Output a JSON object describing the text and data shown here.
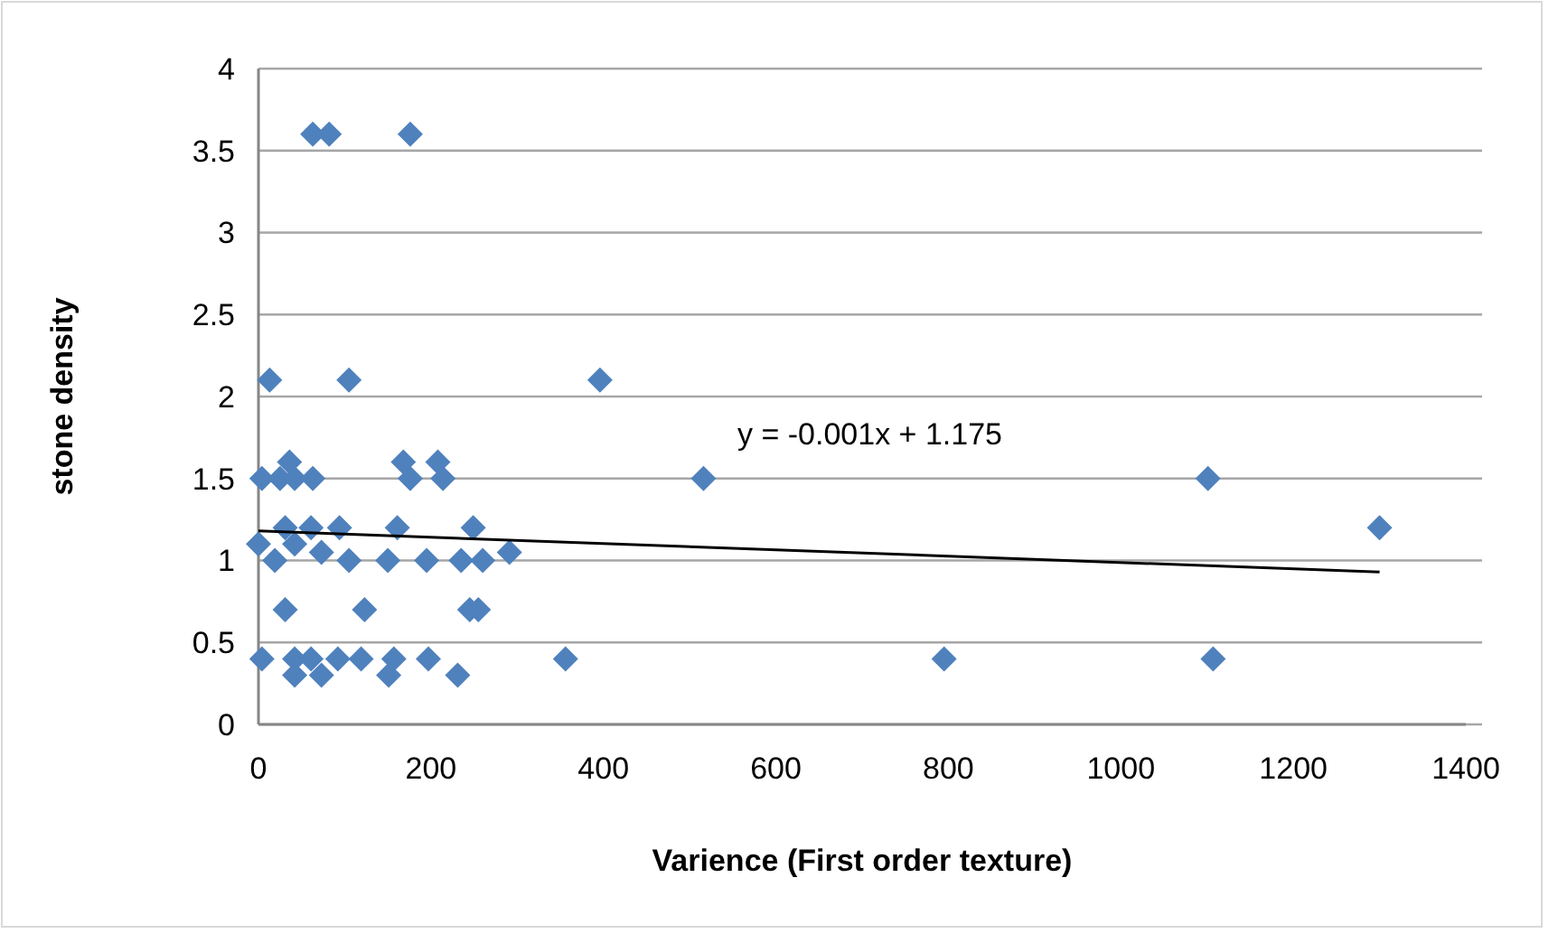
{
  "chart_data": {
    "type": "scatter",
    "xlabel": "Varience (First order texture)",
    "ylabel": "stone density",
    "xlim": [
      0,
      1400
    ],
    "xticks": [
      0,
      200,
      400,
      600,
      800,
      1000,
      1200,
      1400
    ],
    "ylim": [
      0,
      4
    ],
    "yticks": [
      0,
      0.5,
      1,
      1.5,
      2,
      2.5,
      3,
      3.5,
      4
    ],
    "grid": "y",
    "marker": "diamond",
    "annotations": [
      "y = -0.001x + 1.175"
    ],
    "series": [
      {
        "color": "#4f81bd",
        "x": [
          63,
          82,
          176,
          13,
          105,
          396,
          4,
          25,
          42,
          63,
          36,
          168,
          176,
          208,
          214,
          516,
          1101,
          1300,
          0,
          19,
          31,
          42,
          61,
          73,
          94,
          105,
          150,
          161,
          195,
          235,
          249,
          260,
          291,
          31,
          123,
          245,
          255,
          4,
          42,
          61,
          92,
          119,
          157,
          197,
          356,
          795,
          1107,
          42,
          73,
          151,
          231
        ],
        "values": [
          3.6,
          3.6,
          3.6,
          2.1,
          2.1,
          2.1,
          1.5,
          1.5,
          1.5,
          1.5,
          1.6,
          1.6,
          1.5,
          1.6,
          1.5,
          1.5,
          1.5,
          1.2,
          1.1,
          1.0,
          1.2,
          1.1,
          1.2,
          1.05,
          1.2,
          1.0,
          1.0,
          1.2,
          1.0,
          1.0,
          1.2,
          1.0,
          1.05,
          0.7,
          0.7,
          0.7,
          0.7,
          0.4,
          0.4,
          0.4,
          0.4,
          0.4,
          0.4,
          0.4,
          0.4,
          0.4,
          0.4,
          0.3,
          0.3,
          0.3,
          0.3
        ]
      },
      {
        "type": "line",
        "color": "#000000",
        "marker": "none",
        "x": [
          0,
          1300
        ],
        "values": [
          1.18,
          0.93
        ]
      }
    ]
  }
}
